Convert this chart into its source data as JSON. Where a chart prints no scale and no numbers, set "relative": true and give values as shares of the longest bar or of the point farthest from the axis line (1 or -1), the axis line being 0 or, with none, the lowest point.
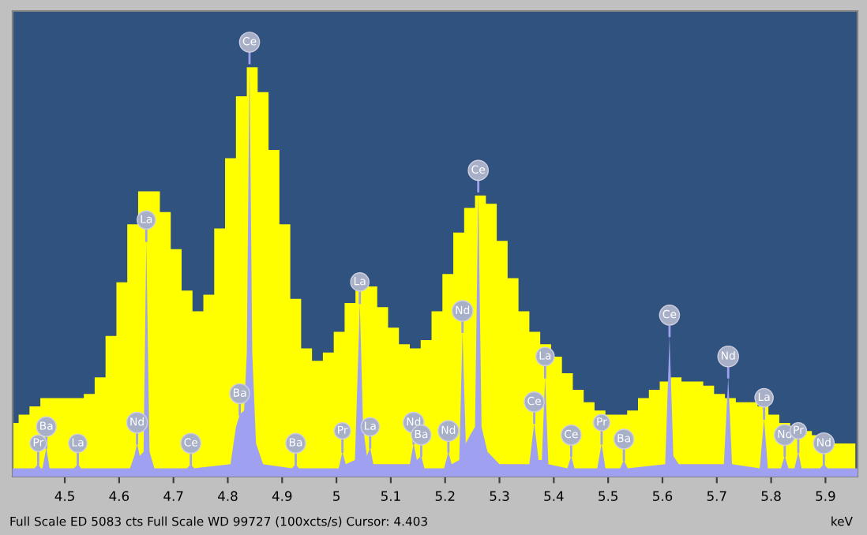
{
  "chart_data": {
    "type": "area",
    "relative": true,
    "xlabel": "keV",
    "xlim": [
      4.404,
      5.959
    ],
    "xticks": [
      4.5,
      4.6,
      4.7,
      4.8,
      4.9,
      {
        "value": 5.0,
        "label": "5"
      },
      5.1,
      5.2,
      5.3,
      5.4,
      5.5,
      5.6,
      5.7,
      5.8,
      5.9
    ],
    "tick_labels": "x",
    "grid": false,
    "series": [
      {
        "type": "histogram",
        "color": "#ffff00",
        "bins": [
          4.395,
          4.415,
          4.435,
          4.455,
          4.475,
          4.495,
          4.515,
          4.535,
          4.555,
          4.575,
          4.595,
          4.615,
          4.635,
          4.655,
          4.675,
          4.695,
          4.715,
          4.735,
          4.755,
          4.775,
          4.795,
          4.815,
          4.835,
          4.855,
          4.875,
          4.895,
          4.915,
          4.935,
          4.955,
          4.975,
          4.995,
          5.015,
          5.035,
          5.055,
          5.075,
          5.095,
          5.115,
          5.135,
          5.155,
          5.175,
          5.195,
          5.215,
          5.235,
          5.255,
          5.275,
          5.295,
          5.315,
          5.335,
          5.355,
          5.375,
          5.395,
          5.415,
          5.435,
          5.455,
          5.475,
          5.495,
          5.515,
          5.535,
          5.555,
          5.575,
          5.595,
          5.615,
          5.635,
          5.655,
          5.675,
          5.695,
          5.715,
          5.735,
          5.755,
          5.775,
          5.795,
          5.815,
          5.835,
          5.855,
          5.875,
          5.895,
          5.915,
          5.935,
          5.955
        ],
        "values": [
          0.13,
          0.15,
          0.17,
          0.19,
          0.19,
          0.19,
          0.19,
          0.2,
          0.24,
          0.34,
          0.47,
          0.61,
          0.69,
          0.69,
          0.64,
          0.55,
          0.45,
          0.4,
          0.44,
          0.6,
          0.77,
          0.92,
          0.99,
          0.93,
          0.79,
          0.61,
          0.43,
          0.31,
          0.28,
          0.3,
          0.35,
          0.42,
          0.47,
          0.46,
          0.41,
          0.36,
          0.32,
          0.31,
          0.33,
          0.4,
          0.49,
          0.59,
          0.65,
          0.68,
          0.66,
          0.57,
          0.48,
          0.4,
          0.35,
          0.32,
          0.29,
          0.25,
          0.21,
          0.18,
          0.16,
          0.15,
          0.15,
          0.16,
          0.19,
          0.21,
          0.23,
          0.24,
          0.23,
          0.23,
          0.22,
          0.2,
          0.19,
          0.18,
          0.18,
          0.17,
          0.15,
          0.13,
          0.12,
          0.11,
          0.1,
          0.09,
          0.08,
          0.08
        ]
      },
      {
        "color": "#a0a0f0",
        "x": [
          4.404,
          4.444,
          4.451,
          4.456,
          4.459,
          4.466,
          4.472,
          4.517,
          4.524,
          4.53,
          4.62,
          4.628,
          4.633,
          4.638,
          4.645,
          4.65,
          4.656,
          4.665,
          4.725,
          4.732,
          4.738,
          4.805,
          4.815,
          4.822,
          4.83,
          4.835,
          4.84,
          4.845,
          4.852,
          4.865,
          4.918,
          4.925,
          4.931,
          5.004,
          5.011,
          5.017,
          5.034,
          5.043,
          5.049,
          5.056,
          5.062,
          5.068,
          5.135,
          5.142,
          5.148,
          5.156,
          5.162,
          5.198,
          5.206,
          5.212,
          5.226,
          5.232,
          5.238,
          5.246,
          5.255,
          5.261,
          5.267,
          5.278,
          5.3,
          5.355,
          5.364,
          5.372,
          5.378,
          5.384,
          5.39,
          5.425,
          5.432,
          5.438,
          5.48,
          5.488,
          5.495,
          5.522,
          5.529,
          5.536,
          5.605,
          5.613,
          5.62,
          5.63,
          5.713,
          5.721,
          5.728,
          5.779,
          5.787,
          5.794,
          5.818,
          5.825,
          5.832,
          5.843,
          5.85,
          5.856,
          5.89,
          5.897,
          5.904,
          5.959
        ],
        "values": [
          0.02,
          0.02,
          0.03,
          0.02,
          0.02,
          0.07,
          0.02,
          0.02,
          0.03,
          0.02,
          0.02,
          0.05,
          0.08,
          0.05,
          0.06,
          0.57,
          0.06,
          0.02,
          0.02,
          0.03,
          0.02,
          0.03,
          0.12,
          0.15,
          0.16,
          0.3,
          1.0,
          0.3,
          0.08,
          0.03,
          0.02,
          0.03,
          0.02,
          0.02,
          0.06,
          0.03,
          0.04,
          0.42,
          0.12,
          0.05,
          0.07,
          0.03,
          0.03,
          0.08,
          0.04,
          0.05,
          0.02,
          0.02,
          0.06,
          0.03,
          0.04,
          0.35,
          0.08,
          0.1,
          0.12,
          0.69,
          0.12,
          0.06,
          0.03,
          0.03,
          0.13,
          0.04,
          0.04,
          0.24,
          0.03,
          0.02,
          0.05,
          0.02,
          0.02,
          0.08,
          0.02,
          0.02,
          0.04,
          0.02,
          0.03,
          0.34,
          0.05,
          0.03,
          0.03,
          0.24,
          0.03,
          0.02,
          0.14,
          0.02,
          0.02,
          0.05,
          0.02,
          0.02,
          0.06,
          0.02,
          0.02,
          0.03,
          0.02,
          0.02
        ]
      }
    ],
    "annotations": [
      {
        "text": "Pr",
        "x": 4.451,
        "y": 0.03
      },
      {
        "text": "Ba",
        "x": 4.466,
        "y": 0.07
      },
      {
        "text": "La",
        "x": 4.524,
        "y": 0.03
      },
      {
        "text": "Nd",
        "x": 4.633,
        "y": 0.08
      },
      {
        "text": "La",
        "x": 4.65,
        "y": 0.57
      },
      {
        "text": "Ce",
        "x": 4.732,
        "y": 0.03
      },
      {
        "text": "Ba",
        "x": 4.822,
        "y": 0.15
      },
      {
        "text": "Ce",
        "x": 4.84,
        "y": 1.0
      },
      {
        "text": "Ba",
        "x": 4.925,
        "y": 0.03
      },
      {
        "text": "Pr",
        "x": 5.011,
        "y": 0.06
      },
      {
        "text": "La",
        "x": 5.043,
        "y": 0.42
      },
      {
        "text": "La",
        "x": 5.062,
        "y": 0.07
      },
      {
        "text": "Nd",
        "x": 5.142,
        "y": 0.08
      },
      {
        "text": "Ba",
        "x": 5.156,
        "y": 0.05
      },
      {
        "text": "Nd",
        "x": 5.206,
        "y": 0.06
      },
      {
        "text": "Nd",
        "x": 5.232,
        "y": 0.35
      },
      {
        "text": "Ce",
        "x": 5.261,
        "y": 0.69
      },
      {
        "text": "Ce",
        "x": 5.364,
        "y": 0.13
      },
      {
        "text": "La",
        "x": 5.384,
        "y": 0.24
      },
      {
        "text": "Ce",
        "x": 5.432,
        "y": 0.05
      },
      {
        "text": "Pr",
        "x": 5.488,
        "y": 0.08
      },
      {
        "text": "Ba",
        "x": 5.529,
        "y": 0.04
      },
      {
        "text": "Ce",
        "x": 5.613,
        "y": 0.34
      },
      {
        "text": "Nd",
        "x": 5.721,
        "y": 0.24
      },
      {
        "text": "La",
        "x": 5.787,
        "y": 0.14
      },
      {
        "text": "Nd",
        "x": 5.825,
        "y": 0.05
      },
      {
        "text": "Pr",
        "x": 5.85,
        "y": 0.06
      },
      {
        "text": "Nd",
        "x": 5.897,
        "y": 0.03
      },
      "Full Scale ED 5083 cts Full Scale WD 99727 (100xcts/s) Cursor: 4.403"
    ]
  }
}
